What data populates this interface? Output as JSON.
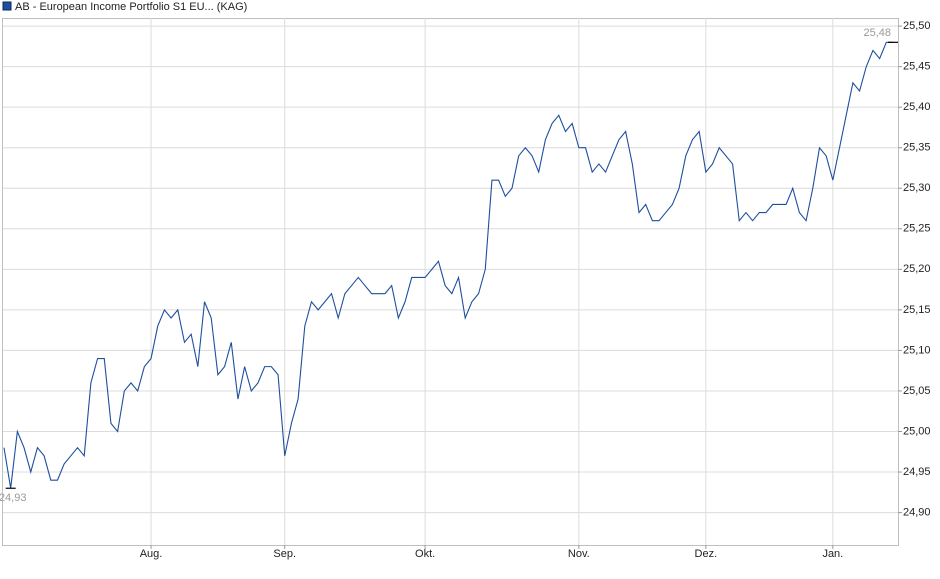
{
  "chart_data": {
    "type": "line",
    "series": [
      {
        "name": "AB - European Income Portfolio S1 EU... (KAG)",
        "color": "#1e4f9e",
        "values": [
          24.98,
          24.93,
          25.0,
          24.98,
          24.95,
          24.98,
          24.97,
          24.94,
          24.94,
          24.96,
          24.97,
          24.98,
          24.97,
          25.06,
          25.09,
          25.09,
          25.01,
          25.0,
          25.05,
          25.06,
          25.05,
          25.08,
          25.09,
          25.13,
          25.15,
          25.14,
          25.15,
          25.11,
          25.12,
          25.08,
          25.16,
          25.14,
          25.07,
          25.08,
          25.11,
          25.04,
          25.08,
          25.05,
          25.06,
          25.08,
          25.08,
          25.07,
          24.97,
          25.01,
          25.04,
          25.13,
          25.16,
          25.15,
          25.16,
          25.17,
          25.14,
          25.17,
          25.18,
          25.19,
          25.18,
          25.17,
          25.17,
          25.17,
          25.18,
          25.14,
          25.16,
          25.19,
          25.19,
          25.19,
          25.2,
          25.21,
          25.18,
          25.17,
          25.19,
          25.14,
          25.16,
          25.17,
          25.2,
          25.31,
          25.31,
          25.29,
          25.3,
          25.34,
          25.35,
          25.34,
          25.32,
          25.36,
          25.38,
          25.39,
          25.37,
          25.38,
          25.35,
          25.35,
          25.32,
          25.33,
          25.32,
          25.34,
          25.36,
          25.37,
          25.33,
          25.27,
          25.28,
          25.26,
          25.26,
          25.27,
          25.28,
          25.3,
          25.34,
          25.36,
          25.37,
          25.32,
          25.33,
          25.35,
          25.34,
          25.33,
          25.26,
          25.27,
          25.26,
          25.27,
          25.27,
          25.28,
          25.28,
          25.28,
          25.3,
          25.27,
          25.26,
          25.3,
          25.35,
          25.34,
          25.31,
          25.35,
          25.39,
          25.43,
          25.42,
          25.45,
          25.47,
          25.46,
          25.48,
          25.48
        ]
      }
    ],
    "categories": [
      null,
      null,
      null,
      null,
      null,
      null,
      null,
      null,
      null,
      null,
      null,
      null,
      null,
      null,
      null,
      null,
      null,
      null,
      null,
      null,
      null,
      null,
      "Aug.",
      null,
      null,
      null,
      null,
      null,
      null,
      null,
      null,
      null,
      null,
      null,
      null,
      null,
      null,
      null,
      null,
      null,
      null,
      null,
      "Sep.",
      null,
      null,
      null,
      null,
      null,
      null,
      null,
      null,
      null,
      null,
      null,
      null,
      null,
      null,
      null,
      null,
      null,
      null,
      null,
      null,
      "Okt.",
      null,
      null,
      null,
      null,
      null,
      null,
      null,
      null,
      null,
      null,
      null,
      null,
      null,
      null,
      null,
      null,
      null,
      null,
      null,
      null,
      null,
      null,
      "Nov.",
      null,
      null,
      null,
      null,
      null,
      null,
      null,
      null,
      null,
      null,
      null,
      null,
      null,
      null,
      null,
      null,
      null,
      null,
      "Dez.",
      null,
      null,
      null,
      null,
      null,
      null,
      null,
      null,
      null,
      null,
      null,
      null,
      null,
      null,
      null,
      null,
      null,
      null,
      "Jan.",
      null,
      null,
      null,
      null,
      null,
      null,
      null,
      null,
      null
    ],
    "ylim": [
      24.86,
      25.51
    ],
    "yticks": [
      {
        "value": 24.9,
        "label": "24,90"
      },
      {
        "value": 24.95,
        "label": "24,95"
      },
      {
        "value": 25.0,
        "label": "25,00"
      },
      {
        "value": 25.05,
        "label": "25,05"
      },
      {
        "value": 25.1,
        "label": "25,10"
      },
      {
        "value": 25.15,
        "label": "25,15"
      },
      {
        "value": 25.2,
        "label": "25,20"
      },
      {
        "value": 25.25,
        "label": "25,25"
      },
      {
        "value": 25.3,
        "label": "25,30"
      },
      {
        "value": 25.35,
        "label": "25,35"
      },
      {
        "value": 25.4,
        "label": "25,40"
      },
      {
        "value": 25.45,
        "label": "25,45"
      },
      {
        "value": 25.5,
        "label": "25,50"
      }
    ],
    "grid": true,
    "annotations": [
      {
        "value": 24.93,
        "label": "24,93"
      },
      {
        "value": 25.48,
        "label": "25,48"
      }
    ]
  }
}
